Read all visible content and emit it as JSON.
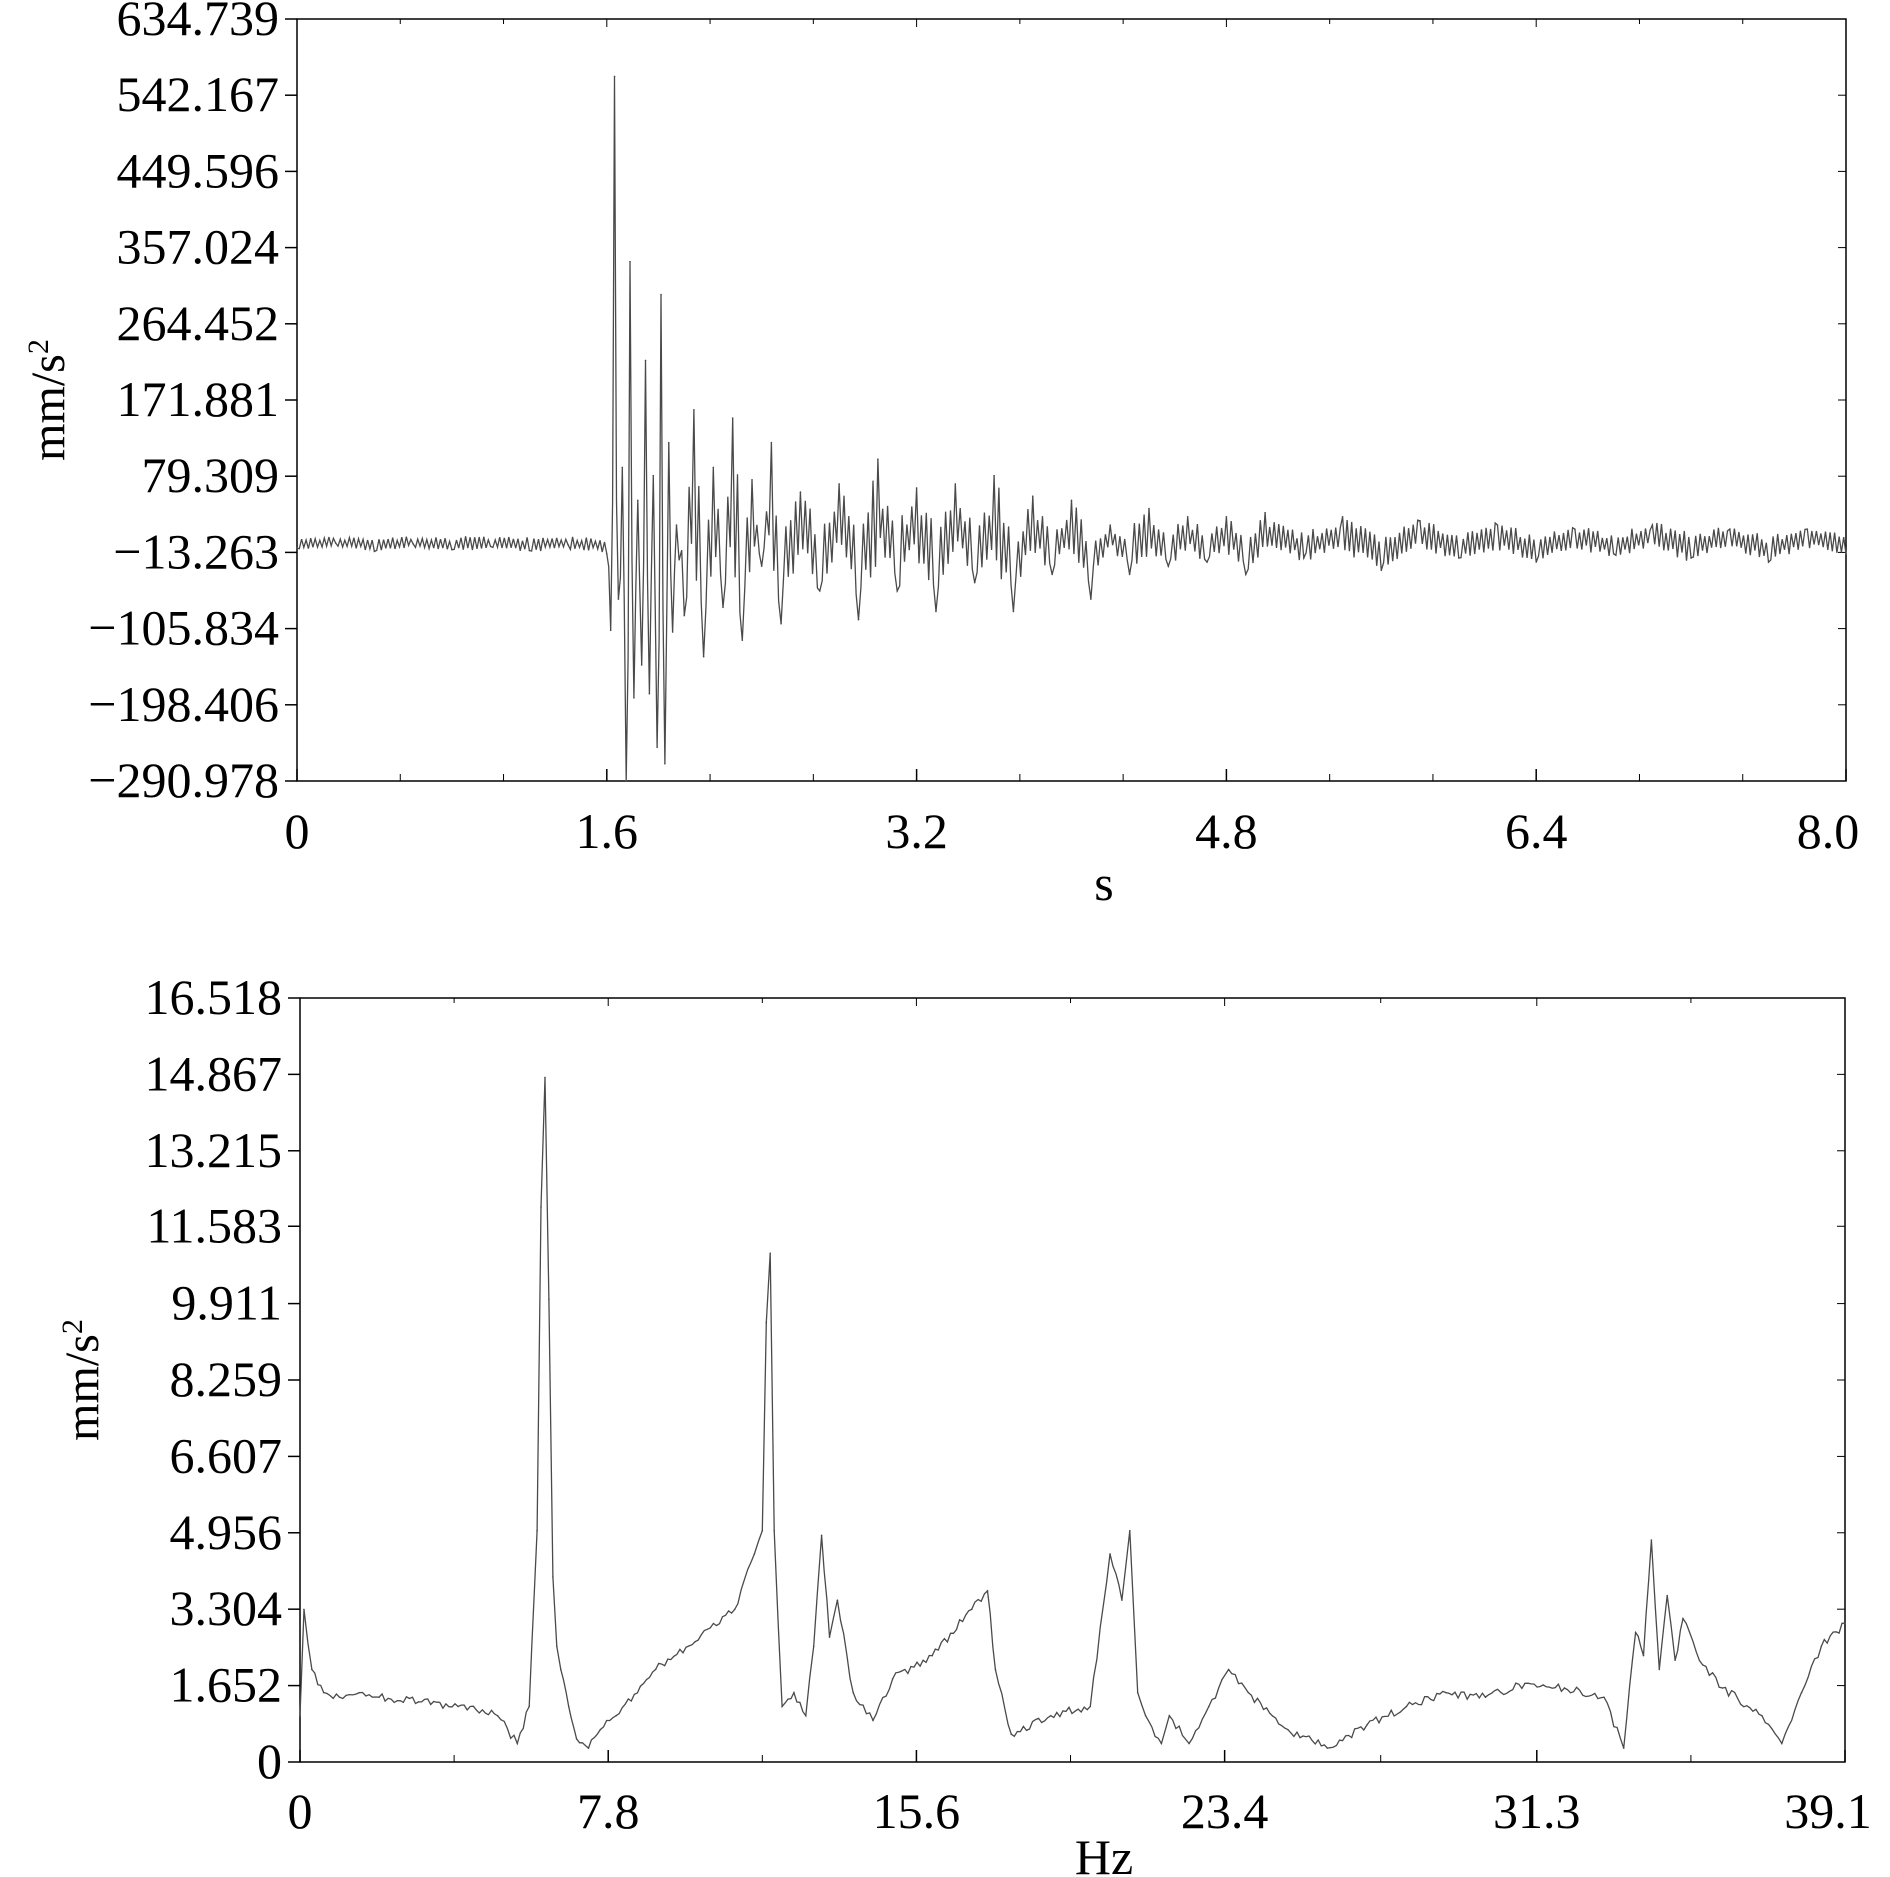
{
  "chart_data": [
    {
      "type": "line",
      "title": "",
      "xlabel": "s",
      "ylabel": "mm/s²",
      "ylabel_base": "mm/s",
      "ylabel_sup": "2",
      "xlim": [
        0,
        8.0
      ],
      "ylim": [
        -290.978,
        634.739
      ],
      "xticks": [
        0,
        1.6,
        3.2,
        4.8,
        6.4,
        8.0
      ],
      "xtick_labels": [
        "0",
        "1.6",
        "3.2",
        "4.8",
        "6.4",
        "8.0"
      ],
      "yticks": [
        634.739,
        542.167,
        449.596,
        357.024,
        264.452,
        171.881,
        79.309,
        -13.263,
        -105.834,
        -198.406,
        -290.978
      ],
      "ytick_labels": [
        "634.739",
        "542.167",
        "449.596",
        "357.024",
        "264.452",
        "171.881",
        "79.309",
        "−13.263",
        "−105.834",
        "−198.406",
        "−290.978"
      ],
      "grid": false,
      "line_color": "#4a4a4a",
      "series": [
        {
          "x": [
            0,
            0.2,
            0.4,
            0.6,
            0.8,
            1.0,
            1.2,
            1.4,
            1.6,
            1.62,
            1.64,
            1.66,
            1.68,
            1.7,
            1.72,
            1.74,
            1.76,
            1.78,
            1.8,
            1.82,
            1.84,
            1.86,
            1.88,
            1.9,
            1.92,
            1.94,
            1.96,
            2.0,
            2.05,
            2.1,
            2.15,
            2.2,
            2.25,
            2.3,
            2.35,
            2.4,
            2.45,
            2.5,
            2.6,
            2.7,
            2.8,
            2.9,
            3.0,
            3.1,
            3.2,
            3.3,
            3.4,
            3.5,
            3.6,
            3.7,
            3.8,
            3.9,
            4.0,
            4.1,
            4.2,
            4.3,
            4.4,
            4.5,
            4.6,
            4.7,
            4.8,
            4.9,
            5.0,
            5.2,
            5.4,
            5.6,
            5.8,
            6.0,
            6.2,
            6.4,
            6.6,
            6.8,
            7.0,
            7.2,
            7.4,
            7.6,
            7.8,
            8.0
          ],
          "y": [
            -8,
            -2,
            -12,
            -3,
            -10,
            -6,
            -11,
            -4,
            -15,
            -108,
            565,
            -70,
            90,
            -293,
            340,
            -190,
            50,
            -150,
            220,
            -185,
            80,
            -250,
            300,
            -270,
            120,
            -110,
            20,
            -90,
            160,
            -140,
            90,
            -80,
            150,
            -120,
            75,
            -30,
            120,
            -100,
            60,
            -60,
            70,
            -95,
            100,
            -60,
            65,
            -85,
            70,
            -50,
            80,
            -85,
            55,
            -40,
            50,
            -70,
            20,
            -40,
            40,
            -30,
            30,
            -25,
            30,
            -40,
            35,
            -20,
            30,
            -35,
            25,
            -20,
            20,
            -25,
            15,
            -15,
            20,
            -20,
            15,
            -25,
            15,
            -15
          ]
        }
      ]
    },
    {
      "type": "line",
      "title": "",
      "xlabel": "Hz",
      "ylabel": "mm/s²",
      "ylabel_base": "mm/s",
      "ylabel_sup": "2",
      "xlim": [
        0,
        39.1
      ],
      "ylim": [
        0,
        16.518
      ],
      "xticks": [
        0,
        7.8,
        15.6,
        23.4,
        31.3,
        39.1
      ],
      "xtick_labels": [
        "0",
        "7.8",
        "15.6",
        "23.4",
        "31.3",
        "39.1"
      ],
      "yticks": [
        16.518,
        14.867,
        13.215,
        11.583,
        9.911,
        8.259,
        6.607,
        4.956,
        3.304,
        1.652,
        0
      ],
      "ytick_labels": [
        "16.518",
        "14.867",
        "13.215",
        "11.583",
        "9.911",
        "8.259",
        "6.607",
        "4.956",
        "3.304",
        "1.652",
        "0"
      ],
      "grid": false,
      "line_color": "#4a4a4a",
      "series": [
        {
          "x": [
            0,
            0.1,
            0.3,
            0.6,
            1.0,
            1.5,
            2.0,
            3.0,
            4.0,
            5.0,
            5.5,
            5.8,
            6.0,
            6.1,
            6.2,
            6.3,
            6.4,
            6.5,
            6.6,
            6.8,
            7.0,
            7.3,
            7.6,
            8.0,
            9.0,
            10.0,
            11.0,
            11.5,
            11.7,
            11.8,
            11.9,
            12.0,
            12.2,
            12.5,
            12.8,
            13.0,
            13.2,
            13.4,
            13.6,
            14.0,
            14.5,
            15.0,
            16.0,
            17.0,
            17.4,
            17.6,
            18.0,
            19.0,
            20.0,
            20.5,
            20.8,
            21.0,
            21.2,
            21.4,
            21.8,
            22.0,
            22.5,
            23.0,
            23.5,
            24.0,
            25.0,
            26.0,
            27.0,
            28.0,
            29.0,
            30.0,
            31.0,
            32.0,
            33.0,
            33.5,
            33.8,
            34.0,
            34.2,
            34.4,
            34.6,
            34.8,
            35.0,
            35.5,
            36.0,
            37.0,
            37.5,
            38.0,
            38.5,
            39.1
          ],
          "y": [
            1.0,
            3.3,
            2.0,
            1.5,
            1.4,
            1.5,
            1.4,
            1.3,
            1.2,
            1.0,
            0.4,
            1.2,
            5.0,
            12.0,
            14.8,
            10.0,
            4.0,
            2.5,
            2.0,
            1.2,
            0.5,
            0.3,
            0.7,
            1.0,
            2.0,
            2.6,
            3.3,
            4.5,
            5.0,
            9.5,
            11.0,
            5.0,
            1.2,
            1.5,
            1.0,
            2.5,
            4.9,
            2.7,
            3.5,
            1.5,
            0.9,
            1.8,
            2.3,
            3.3,
            3.7,
            2.0,
            0.6,
            1.0,
            1.2,
            4.5,
            3.5,
            5.0,
            1.5,
            1.0,
            0.4,
            1.0,
            0.4,
            1.2,
            2.0,
            1.5,
            0.7,
            0.3,
            0.8,
            1.2,
            1.5,
            1.4,
            1.7,
            1.6,
            1.4,
            0.3,
            2.8,
            2.3,
            4.8,
            2.0,
            3.6,
            2.2,
            3.1,
            2.1,
            1.6,
            1.0,
            0.4,
            1.5,
            2.5,
            3.0
          ]
        }
      ]
    }
  ]
}
